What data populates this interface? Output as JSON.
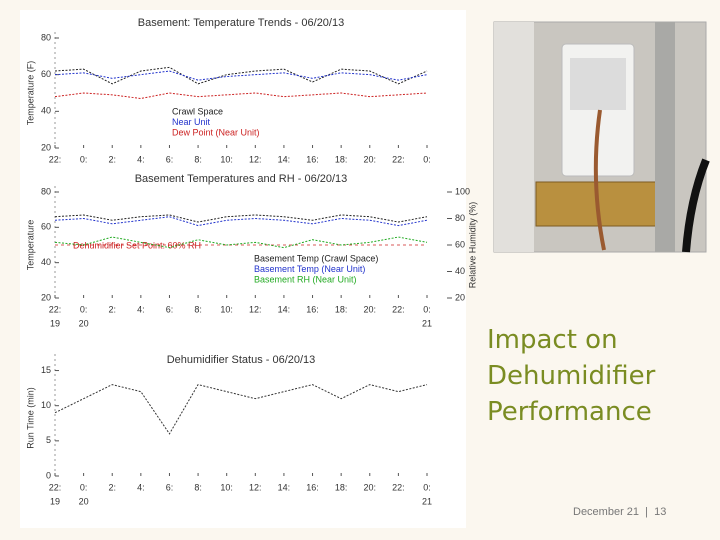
{
  "chart_data": [
    {
      "type": "line",
      "title": "Basement: Temperature Trends - 06/20/13",
      "y_label": "Temperature (F)",
      "x": [
        -2,
        0,
        2,
        4,
        6,
        8,
        10,
        12,
        14,
        16,
        18,
        20,
        22,
        24
      ],
      "xlim": [
        -2,
        24
      ],
      "xticks": [
        {
          "value": -2,
          "label": "22:"
        },
        {
          "value": 0,
          "label": "0:"
        },
        {
          "value": 2,
          "label": "2:"
        },
        {
          "value": 4,
          "label": "4:"
        },
        {
          "value": 6,
          "label": "6:"
        },
        {
          "value": 8,
          "label": "8:"
        },
        {
          "value": 10,
          "label": "10:"
        },
        {
          "value": 12,
          "label": "12:"
        },
        {
          "value": 14,
          "label": "14:"
        },
        {
          "value": 16,
          "label": "16:"
        },
        {
          "value": 18,
          "label": "18:"
        },
        {
          "value": 20,
          "label": "20:"
        },
        {
          "value": 22,
          "label": "22:"
        },
        {
          "value": 24,
          "label": "0:"
        }
      ],
      "ylim": [
        20,
        80
      ],
      "yticks": [
        20,
        40,
        60,
        80
      ],
      "legend": "lower center",
      "series": [
        {
          "name": "Crawl Space",
          "color": "#222222",
          "values": [
            62,
            63,
            55,
            62,
            64,
            55,
            60,
            62,
            63,
            56,
            63,
            62,
            55,
            62
          ]
        },
        {
          "name": "Near Unit",
          "color": "#2233cc",
          "values": [
            60,
            61,
            58,
            60,
            62,
            57,
            59,
            60,
            61,
            58,
            61,
            60,
            57,
            60
          ]
        },
        {
          "name": "Dew Point (Near Unit)",
          "color": "#cc2222",
          "values": [
            48,
            50,
            49,
            47,
            50,
            48,
            49,
            50,
            48,
            49,
            50,
            48,
            49,
            50
          ]
        }
      ]
    },
    {
      "type": "line",
      "title": "Basement Temperatures and RH - 06/20/13",
      "y_label": "Temperature",
      "y2_label": "Relative Humidity (%)",
      "annotation": "Dehumidifier Set Point: 60% RH",
      "set_point": 60,
      "x": [
        -2,
        0,
        2,
        4,
        6,
        8,
        10,
        12,
        14,
        16,
        18,
        20,
        22,
        24
      ],
      "xlim": [
        -2,
        24
      ],
      "xticks": [
        {
          "value": -2,
          "label": "22:"
        },
        {
          "value": 0,
          "label": "0:"
        },
        {
          "value": 2,
          "label": "2:"
        },
        {
          "value": 4,
          "label": "4:"
        },
        {
          "value": 6,
          "label": "6:"
        },
        {
          "value": 8,
          "label": "8:"
        },
        {
          "value": 10,
          "label": "10:"
        },
        {
          "value": 12,
          "label": "12:"
        },
        {
          "value": 14,
          "label": "14:"
        },
        {
          "value": 16,
          "label": "16:"
        },
        {
          "value": 18,
          "label": "18:"
        },
        {
          "value": 20,
          "label": "20:"
        },
        {
          "value": 22,
          "label": "22:"
        },
        {
          "value": 24,
          "label": "0:"
        }
      ],
      "x_dates": [
        {
          "value": -2,
          "label": "19"
        },
        {
          "value": 0,
          "label": "20"
        },
        {
          "value": 24,
          "label": "21"
        }
      ],
      "ylim": [
        20,
        80
      ],
      "yticks": [
        20,
        40,
        60,
        80
      ],
      "y2lim": [
        20,
        100
      ],
      "y2ticks": [
        20,
        40,
        60,
        80,
        100
      ],
      "legend": "lower center",
      "series": [
        {
          "name": "Basement Temp (Crawl Space)",
          "color": "#222222",
          "values": [
            66,
            67,
            64,
            66,
            67,
            63,
            66,
            67,
            66,
            64,
            67,
            66,
            63,
            66
          ]
        },
        {
          "name": "Basement Temp (Near Unit)",
          "color": "#2233cc",
          "values": [
            64,
            65,
            62,
            64,
            66,
            61,
            64,
            65,
            64,
            62,
            65,
            64,
            61,
            64
          ]
        },
        {
          "name": "Basement RH (Near Unit)",
          "color": "#22aa22",
          "axis": "y2",
          "values": [
            62,
            60,
            66,
            62,
            58,
            64,
            60,
            62,
            58,
            64,
            60,
            62,
            66,
            62
          ]
        }
      ]
    },
    {
      "type": "line",
      "title": "Dehumidifier Status - 06/20/13",
      "y_label": "Run Time (min)",
      "x": [
        -2,
        0,
        2,
        4,
        6,
        8,
        10,
        12,
        14,
        16,
        18,
        20,
        22,
        24
      ],
      "xlim": [
        -2,
        24
      ],
      "xticks": [
        {
          "value": -2,
          "label": "22:"
        },
        {
          "value": 0,
          "label": "0:"
        },
        {
          "value": 2,
          "label": "2:"
        },
        {
          "value": 4,
          "label": "4:"
        },
        {
          "value": 6,
          "label": "6:"
        },
        {
          "value": 8,
          "label": "8:"
        },
        {
          "value": 10,
          "label": "10:"
        },
        {
          "value": 12,
          "label": "12:"
        },
        {
          "value": 14,
          "label": "14:"
        },
        {
          "value": 16,
          "label": "16:"
        },
        {
          "value": 18,
          "label": "18:"
        },
        {
          "value": 20,
          "label": "20:"
        },
        {
          "value": 22,
          "label": "22:"
        },
        {
          "value": 24,
          "label": "0:"
        }
      ],
      "x_dates": [
        {
          "value": -2,
          "label": "19"
        },
        {
          "value": 0,
          "label": "20"
        },
        {
          "value": 24,
          "label": "21"
        }
      ],
      "ylim": [
        0,
        16.5
      ],
      "yticks": [
        0,
        5,
        10,
        15
      ],
      "series": [
        {
          "color": "#333333",
          "values": [
            9,
            11,
            13,
            12,
            6,
            13,
            12,
            11,
            12,
            13,
            11,
            13,
            12,
            13
          ]
        }
      ]
    }
  ],
  "slide": {
    "heading": "Impact on Dehumidifier Performance",
    "footer_date": "December 21",
    "page": "13"
  }
}
